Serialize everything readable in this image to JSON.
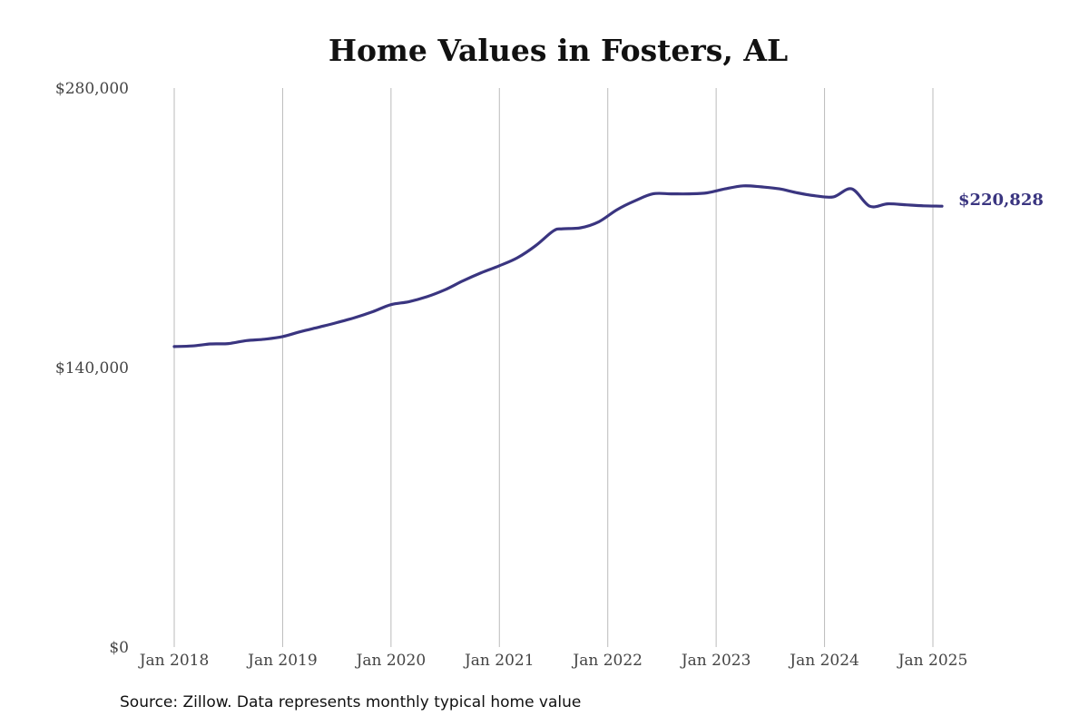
{
  "chart_data": {
    "type": "line",
    "title": "Home Values in Fosters, AL",
    "xlabel": "",
    "ylabel": "",
    "y_ticks": [
      "$0",
      "$140,000",
      "$280,000"
    ],
    "y_tick_values": [
      0,
      140000,
      280000
    ],
    "ylim": [
      0,
      280000
    ],
    "x_ticks": [
      "Jan 2018",
      "Jan 2019",
      "Jan 2020",
      "Jan 2021",
      "Jan 2022",
      "Jan 2023",
      "Jan 2024",
      "Jan 2025"
    ],
    "x_tick_values": [
      "2018-01",
      "2019-01",
      "2020-01",
      "2021-01",
      "2022-01",
      "2023-01",
      "2024-01",
      "2025-01"
    ],
    "xlim": [
      "2018-01",
      "2025-01"
    ],
    "grid": "vertical",
    "line_color": "#3a3580",
    "end_label": "$220,828",
    "series": [
      {
        "x": [
          "2018-01",
          "2018-03",
          "2018-05",
          "2018-07",
          "2018-09",
          "2018-11",
          "2019-01",
          "2019-03",
          "2019-05",
          "2019-07",
          "2019-09",
          "2019-11",
          "2020-01",
          "2020-03",
          "2020-05",
          "2020-07",
          "2020-09",
          "2020-11",
          "2021-01",
          "2021-03",
          "2021-05",
          "2021-07",
          "2021-08",
          "2021-10",
          "2021-12",
          "2022-02",
          "2022-04",
          "2022-06",
          "2022-08",
          "2022-10",
          "2022-12",
          "2023-02",
          "2023-04",
          "2023-06",
          "2023-08",
          "2023-10",
          "2023-12",
          "2024-02",
          "2024-04",
          "2024-06",
          "2024-08",
          "2024-10",
          "2024-12",
          "2025-02"
        ],
        "values": [
          150500,
          150800,
          151800,
          152000,
          153500,
          154200,
          155500,
          158000,
          160200,
          162500,
          165000,
          168000,
          171500,
          173000,
          175500,
          179000,
          183500,
          187500,
          191000,
          195000,
          201000,
          208500,
          209500,
          210000,
          213000,
          219000,
          223500,
          227000,
          227000,
          227000,
          227500,
          229500,
          231000,
          230500,
          229500,
          227500,
          226000,
          225500,
          229500,
          220828,
          222000,
          221500,
          221000,
          220828
        ]
      }
    ]
  },
  "source_note": "Source: Zillow. Data represents monthly typical home value"
}
